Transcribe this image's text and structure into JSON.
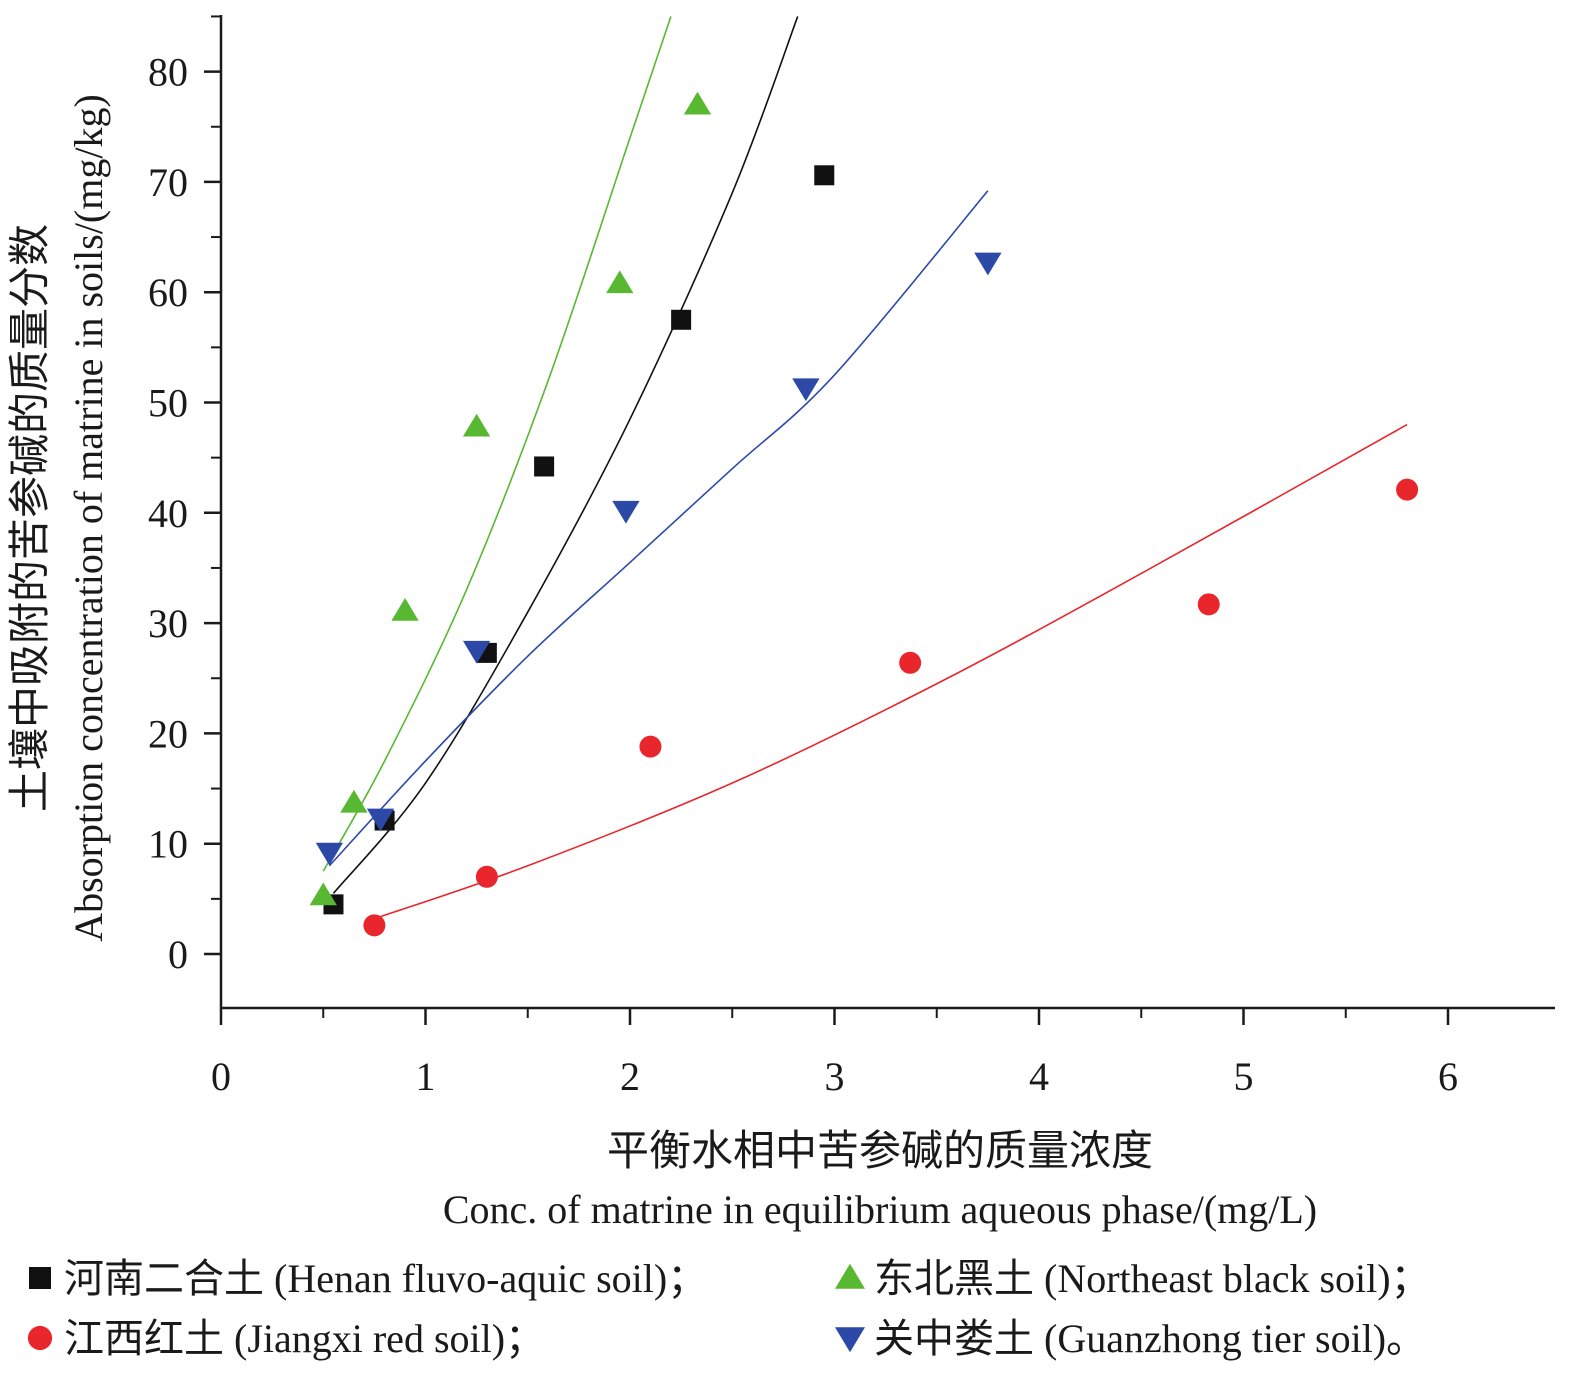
{
  "chart_data": {
    "type": "scatter",
    "title": "",
    "ylabel": {
      "zh": "土壤中吸附的苦参碱的质量分数",
      "en": "Absorption concentration of matrine in soils/(mg/kg)"
    },
    "xlabel": {
      "zh": "平衡水相中苦参碱的质量浓度",
      "en": "Conc. of matrine in equilibrium aqueous phase/(mg/L)"
    },
    "xlim": [
      0,
      6.5
    ],
    "ylim": [
      -5,
      85
    ],
    "xticks": [
      0,
      1,
      2,
      3,
      4,
      5,
      6
    ],
    "yticks": [
      0,
      10,
      20,
      30,
      40,
      50,
      60,
      70,
      80
    ],
    "grid": false,
    "legend_position": "bottom",
    "series": [
      {
        "name": "河南二合土 (Henan fluvo-aquic soil)；",
        "marker": "square",
        "color": "#111111",
        "x": [
          0.55,
          0.8,
          1.3,
          1.58,
          2.25,
          2.95
        ],
        "y": [
          4.5,
          12.1,
          27.3,
          44.2,
          57.5,
          70.6
        ],
        "fit": {
          "x": [
            0.55,
            1.0,
            1.5,
            2.0,
            2.5,
            2.82
          ],
          "y": [
            5.5,
            15.5,
            31.0,
            48.5,
            69.0,
            85.0
          ]
        }
      },
      {
        "name": "东北黑土 (Northeast black soil)；",
        "marker": "triangle-up",
        "color": "#58b832",
        "x": [
          0.5,
          0.65,
          0.9,
          1.25,
          1.95,
          2.33
        ],
        "y": [
          5.3,
          13.7,
          31.1,
          47.8,
          60.8,
          77.0
        ],
        "fit": {
          "x": [
            0.5,
            0.8,
            1.2,
            1.6,
            2.0,
            2.2
          ],
          "y": [
            7.5,
            17.5,
            33.0,
            52.0,
            74.0,
            85.0
          ]
        }
      },
      {
        "name": "江西红土 (Jiangxi red soil)；",
        "marker": "circle",
        "color": "#e8262b",
        "x": [
          0.75,
          1.3,
          2.1,
          3.37,
          4.83,
          5.8
        ],
        "y": [
          2.6,
          7.0,
          18.8,
          26.4,
          31.7,
          42.1
        ],
        "fit": {
          "x": [
            0.75,
            1.5,
            2.5,
            3.5,
            4.5,
            5.8
          ],
          "y": [
            3.2,
            8.0,
            15.5,
            24.5,
            34.5,
            48.0
          ]
        }
      },
      {
        "name": "关中娄土 (Guanzhong tier soil)。",
        "marker": "triangle-down",
        "color": "#2d49a8",
        "x": [
          0.53,
          0.78,
          1.25,
          1.98,
          2.86,
          3.75
        ],
        "y": [
          9.2,
          12.3,
          27.5,
          40.2,
          51.3,
          62.7
        ],
        "fit": {
          "x": [
            0.53,
            1.0,
            1.5,
            2.0,
            2.5,
            3.0,
            3.75
          ],
          "y": [
            8.0,
            17.5,
            27.0,
            35.5,
            44.0,
            52.5,
            69.2
          ]
        }
      }
    ]
  }
}
